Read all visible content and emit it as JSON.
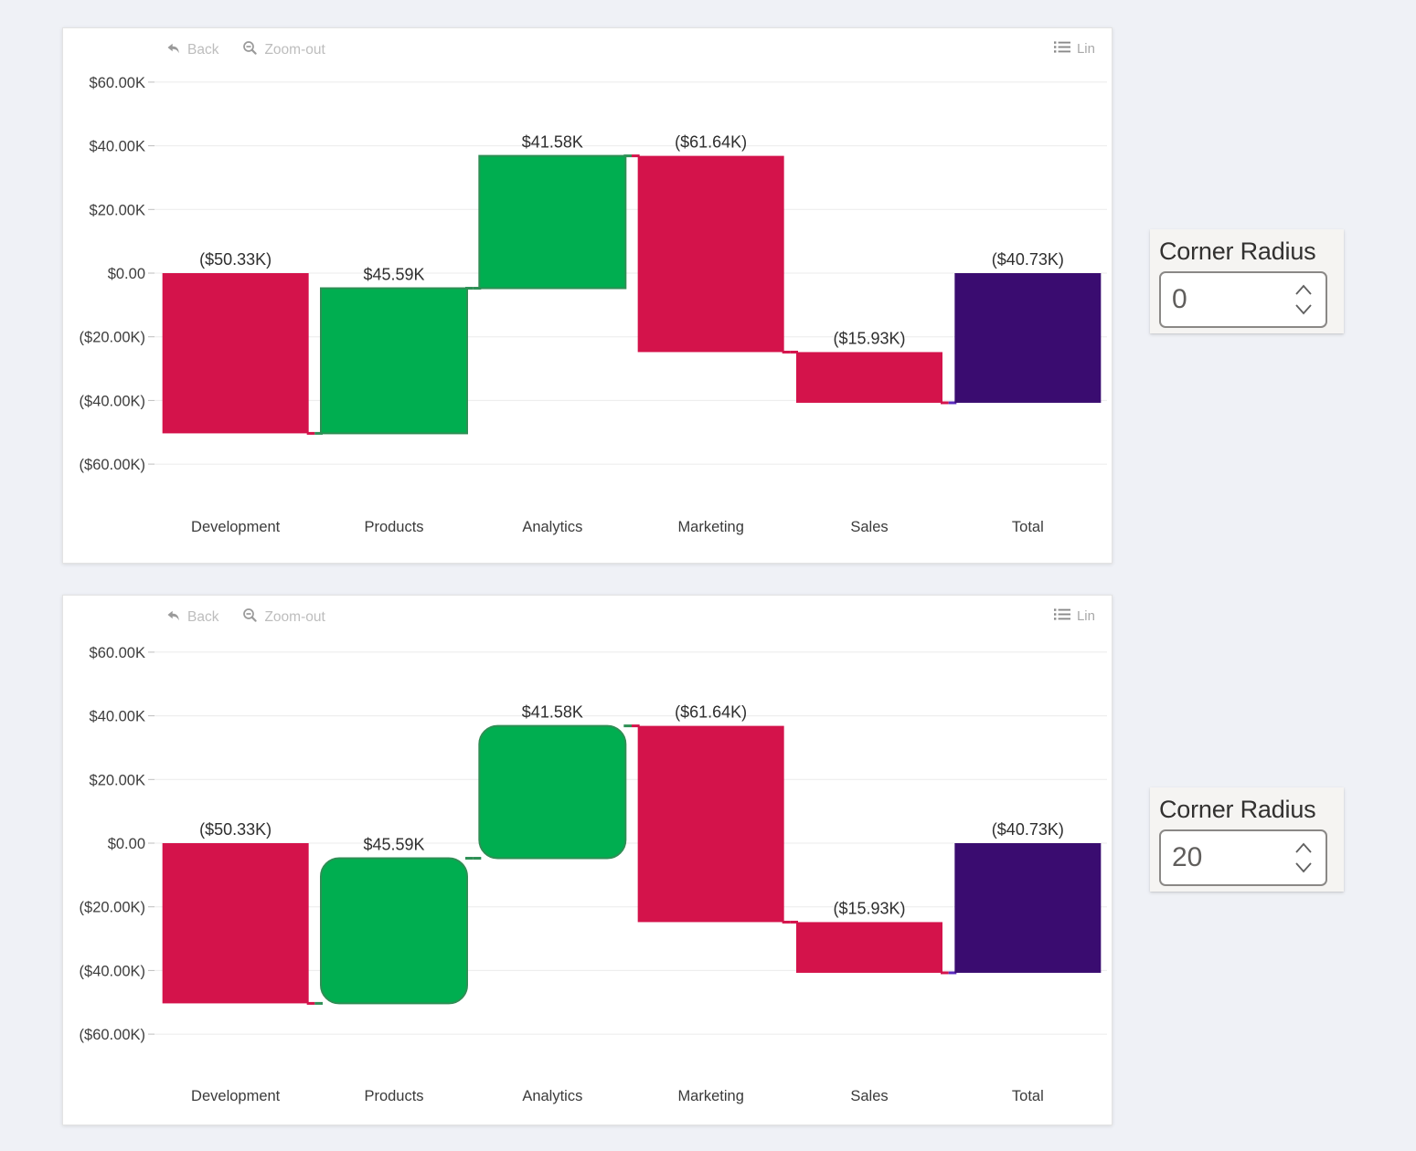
{
  "page": {
    "background": "#eff1f6"
  },
  "charts": [
    {
      "corner_radius": 0,
      "toolbar": {
        "back_label": "Back",
        "zoomout_label": "Zoom-out",
        "legend_label": "Lin"
      }
    },
    {
      "corner_radius": 20,
      "toolbar": {
        "back_label": "Back",
        "zoomout_label": "Zoom-out",
        "legend_label": "Lin"
      }
    }
  ],
  "controls": [
    {
      "label": "Corner Radius",
      "value": "0"
    },
    {
      "label": "Corner Radius",
      "value": "20"
    }
  ],
  "chart_data": {
    "type": "bar",
    "subtype": "waterfall",
    "title": "",
    "categories": [
      "Development",
      "Products",
      "Analytics",
      "Marketing",
      "Sales",
      "Total"
    ],
    "deltas": [
      -50.33,
      45.59,
      41.58,
      -61.64,
      -15.93
    ],
    "total": -40.73,
    "cumulative": [
      -50.33,
      -4.74,
      36.84,
      -24.8,
      -40.73,
      -40.73
    ],
    "point_labels": [
      "($50.33K)",
      "$45.59K",
      "$41.58K",
      "($61.64K)",
      "($15.93K)",
      "($40.73K)"
    ],
    "y_tick_values": [
      60,
      40,
      20,
      0,
      -20,
      -40,
      -60
    ],
    "y_tick_labels": [
      "$60.00K",
      "$40.00K",
      "$20.00K",
      "$0.00",
      "($20.00K)",
      "($40.00K)",
      "($60.00K)"
    ],
    "ylim": [
      -70,
      70
    ],
    "grid": true,
    "legend_position": "top-right",
    "colors": {
      "falling": "#D4134B",
      "rising": "#00AE50",
      "rising_stroke": "#2E8F55",
      "total": "#3A0C70",
      "total_stroke": "#5B2BBE",
      "grid": "#ebebeb",
      "tick": "#bdbdbd",
      "axis_text": "#3d3d3d",
      "label_text": "#2e2e2e"
    }
  }
}
